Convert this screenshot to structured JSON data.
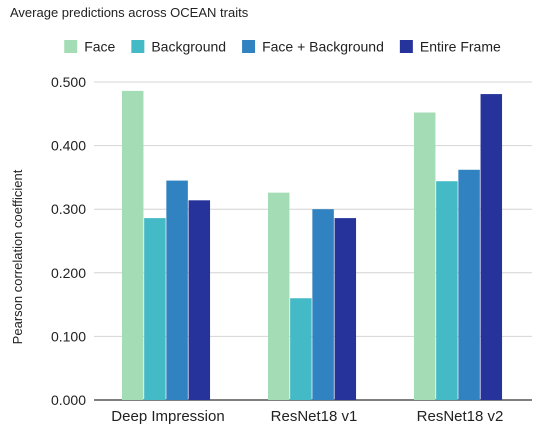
{
  "chart_data": {
    "type": "bar",
    "title": "Average predictions across OCEAN traits",
    "xlabel": "",
    "ylabel": "Pearson correlation coefficient",
    "categories": [
      "Deep Impression",
      "ResNet18 v1",
      "ResNet18 v2"
    ],
    "ylim": [
      0,
      0.5
    ],
    "yticks": [
      "0.000",
      "0.100",
      "0.200",
      "0.300",
      "0.400",
      "0.500"
    ],
    "grid": true,
    "legend_position": "top",
    "series": [
      {
        "name": "Face",
        "color": "#a3dcb5",
        "values": [
          0.486,
          0.326,
          0.452
        ]
      },
      {
        "name": "Background",
        "color": "#45bac7",
        "values": [
          0.286,
          0.16,
          0.344
        ]
      },
      {
        "name": "Face + Background",
        "color": "#3182c0",
        "values": [
          0.345,
          0.3,
          0.362
        ]
      },
      {
        "name": "Entire Frame",
        "color": "#25339b",
        "values": [
          0.314,
          0.286,
          0.481
        ]
      }
    ]
  }
}
